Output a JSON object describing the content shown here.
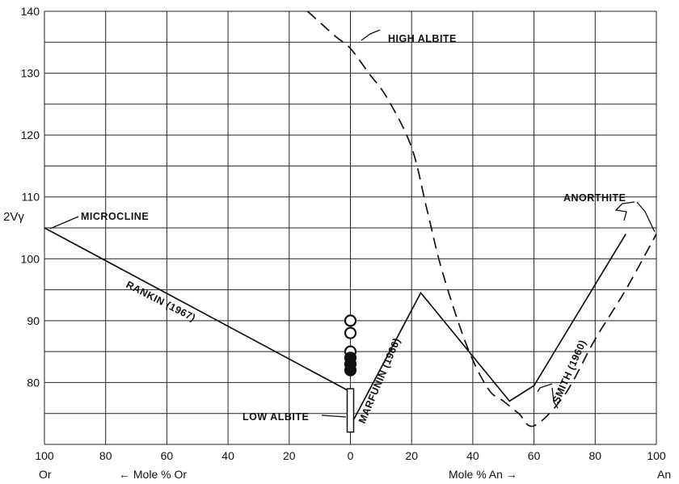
{
  "chart_data": {
    "type": "line",
    "ylabel": "2Vγ",
    "ylim": [
      70,
      140
    ],
    "x_axis_note": "Or (100→0) on the left, An (0→100) on the right",
    "x_ticks": [
      {
        "pos": 0,
        "label": "100"
      },
      {
        "pos": 1,
        "label": "80"
      },
      {
        "pos": 2,
        "label": "60"
      },
      {
        "pos": 3,
        "label": "40"
      },
      {
        "pos": 4,
        "label": "20"
      },
      {
        "pos": 5,
        "label": "0"
      },
      {
        "pos": 6,
        "label": "20"
      },
      {
        "pos": 7,
        "label": "40"
      },
      {
        "pos": 8,
        "label": "60"
      },
      {
        "pos": 9,
        "label": "80"
      },
      {
        "pos": 10,
        "label": "100"
      }
    ],
    "y_ticks": [
      80,
      90,
      100,
      110,
      120,
      130,
      140
    ],
    "bottom_labels": {
      "left_end": "Or",
      "right_end": "An",
      "or_axis": "← Mole % Or",
      "an_axis": "Mole % An →"
    },
    "grid": true,
    "series": [
      {
        "name": "RANKIN (1967)",
        "style": "solid",
        "points": [
          {
            "side": "Or",
            "x": 100,
            "y": 105
          },
          {
            "side": "Or",
            "x": 0,
            "y": 78.5
          }
        ]
      },
      {
        "name": "MARFUNIN (1966)",
        "style": "solid",
        "points": [
          {
            "side": "An",
            "x": 0,
            "y": 73
          },
          {
            "side": "An",
            "x": 23,
            "y": 94.5
          },
          {
            "side": "An",
            "x": 52,
            "y": 77
          },
          {
            "side": "An",
            "x": 60,
            "y": 79.5
          },
          {
            "side": "An",
            "x": 90,
            "y": 104
          }
        ]
      },
      {
        "name": "SMITH (1960)",
        "style": "dashed",
        "points": [
          {
            "side": "Or",
            "x": 14,
            "y": 140
          },
          {
            "side": "Or",
            "x": 5,
            "y": 136
          },
          {
            "side": "An",
            "x": 0,
            "y": 134
          },
          {
            "side": "An",
            "x": 6,
            "y": 130
          },
          {
            "side": "An",
            "x": 12,
            "y": 126
          },
          {
            "side": "An",
            "x": 20,
            "y": 118
          },
          {
            "side": "An",
            "x": 25,
            "y": 108
          },
          {
            "side": "An",
            "x": 30,
            "y": 98
          },
          {
            "side": "An",
            "x": 38,
            "y": 86
          },
          {
            "side": "An",
            "x": 45,
            "y": 79
          },
          {
            "side": "An",
            "x": 50,
            "y": 77
          },
          {
            "side": "An",
            "x": 55,
            "y": 75
          },
          {
            "side": "An",
            "x": 60,
            "y": 73
          },
          {
            "side": "An",
            "x": 70,
            "y": 78
          },
          {
            "side": "An",
            "x": 80,
            "y": 87
          },
          {
            "side": "An",
            "x": 90,
            "y": 95
          },
          {
            "side": "An",
            "x": 100,
            "y": 104
          }
        ]
      }
    ],
    "markers": [
      {
        "kind": "open-circle",
        "x": 0,
        "y": 90
      },
      {
        "kind": "open-circle",
        "x": 0,
        "y": 88
      },
      {
        "kind": "open-circle",
        "x": 0,
        "y": 85
      },
      {
        "kind": "filled-circle",
        "x": 0,
        "y": 84
      },
      {
        "kind": "filled-circle",
        "x": 0,
        "y": 83
      },
      {
        "kind": "filled-circle",
        "x": 0,
        "y": 82
      }
    ],
    "low_albite_box": {
      "x": 0,
      "y_min": 72,
      "y_max": 79
    },
    "annotations": [
      {
        "id": "high_albite",
        "text": "HIGH ALBITE"
      },
      {
        "id": "microcline",
        "text": "MICROCLINE"
      },
      {
        "id": "anorthite",
        "text": "ANORTHITE"
      },
      {
        "id": "low_albite",
        "text": "LOW ALBITE"
      },
      {
        "id": "rankin",
        "text": "RANKIN (1967)"
      },
      {
        "id": "marfunin",
        "text": "MARFUNIN (1966)"
      },
      {
        "id": "smith",
        "text": "SMITH (1960)"
      }
    ]
  }
}
